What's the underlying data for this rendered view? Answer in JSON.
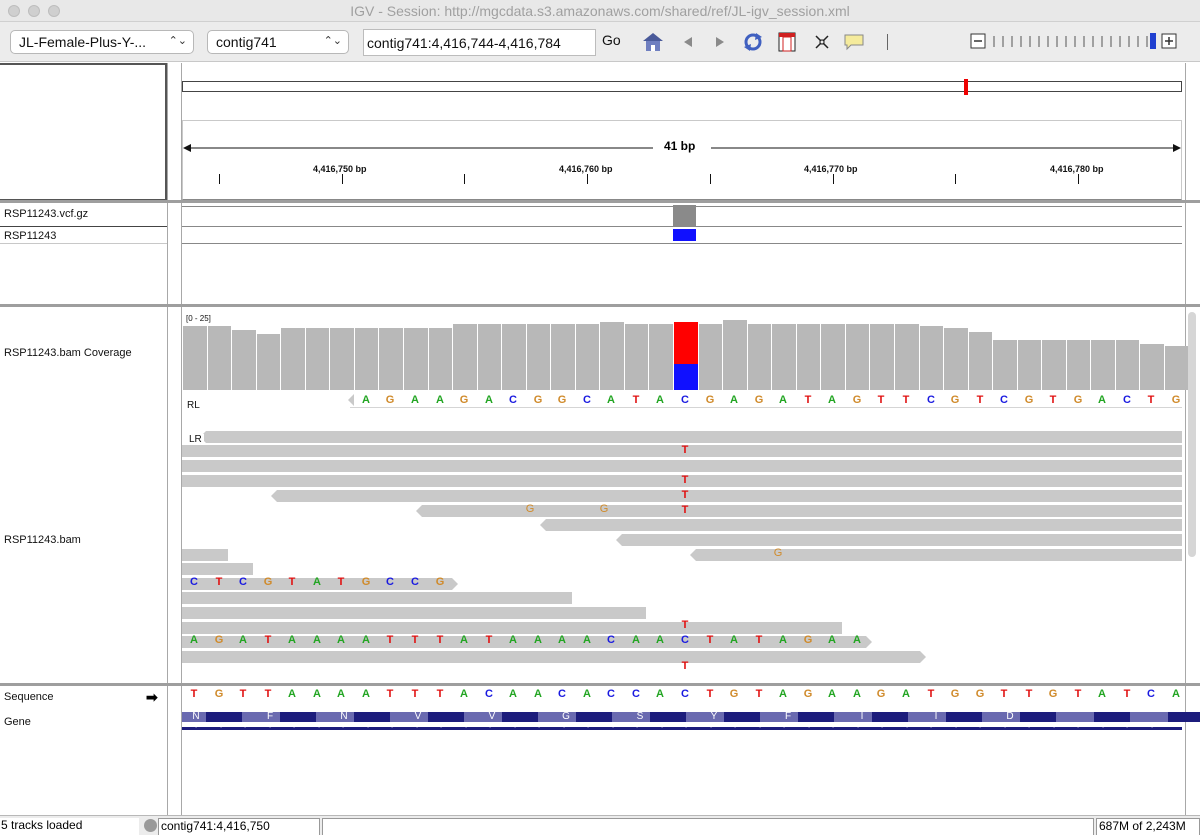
{
  "window": {
    "title": "IGV - Session: http://mgcdata.s3.amazonaws.com/shared/ref/JL-igv_session.xml"
  },
  "toolbar": {
    "genome": "JL-Female-Plus-Y-...",
    "chromosome": "contig741",
    "locus": "contig741:4,416,744-4,416,784",
    "go_label": "Go"
  },
  "ruler": {
    "span_label": "41 bp",
    "ticks": [
      "4,416,750 bp",
      "4,416,760 bp",
      "4,416,770 bp",
      "4,416,780 bp"
    ]
  },
  "tracks": {
    "vcf": "RSP11243.vcf.gz",
    "sample": "RSP11243",
    "coverage": "RSP11243.bam Coverage",
    "coverage_range": "[0 - 25]",
    "bam": "RSP11243.bam",
    "sequence": "Sequence",
    "gene": "Gene",
    "rl_label": "RL",
    "lr_label": "LR"
  },
  "reads": {
    "rl_bases": "AGAAGACGGCATACGAGATAGTTCGTCGTGACTG",
    "row9_bases": "CTCGTATGCCG",
    "row13_bases": "AGATAAAATTTATAAAACAACTATAGAA",
    "snv_base": "T",
    "g_base": "G"
  },
  "sequence": {
    "bases": "TGTTAAAATTTACAACACCACTGTAGAAGATGGTTGTATCA"
  },
  "gene": {
    "aminoacids": [
      "N",
      "F",
      "N",
      "V",
      "V",
      "G",
      "S",
      "Y",
      "F",
      "I",
      "I",
      "D"
    ]
  },
  "status": {
    "tracks_loaded": "5 tracks loaded",
    "position": "contig741:4,416,750",
    "memory": "687M of 2,243M"
  },
  "colors": {
    "A": "#22a522",
    "C": "#1a1ae0",
    "G": "#d08a2a",
    "T": "#e01010",
    "variant_ref": "#1010ff",
    "variant_alt": "#ff0000"
  }
}
